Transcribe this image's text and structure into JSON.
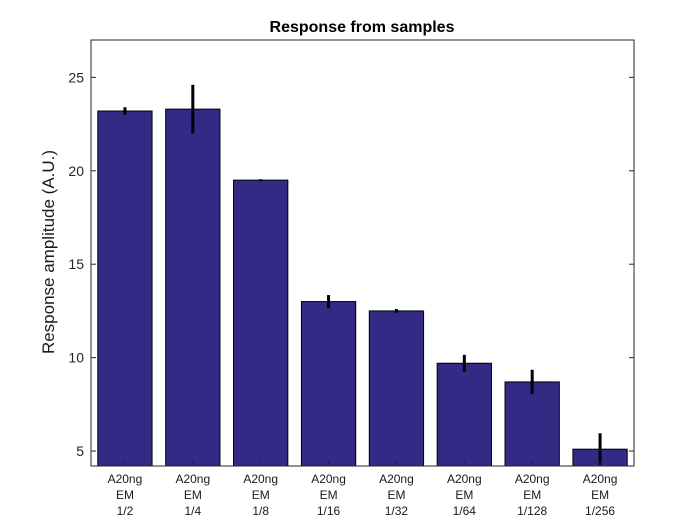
{
  "chart_data": {
    "type": "bar",
    "title": "Response from samples",
    "xlabel": "",
    "ylabel": "Response amplitude (A.U.)",
    "ylim": [
      4.2,
      27
    ],
    "yticks": [
      5,
      10,
      15,
      20,
      25
    ],
    "categories": [
      [
        "A20ng",
        "EM",
        "1/2"
      ],
      [
        "A20ng",
        "EM",
        "1/4"
      ],
      [
        "A20ng",
        "EM",
        "1/8"
      ],
      [
        "A20ng",
        "EM",
        "1/16"
      ],
      [
        "A20ng",
        "EM",
        "1/32"
      ],
      [
        "A20ng",
        "EM",
        "1/64"
      ],
      [
        "A20ng",
        "EM",
        "1/128"
      ],
      [
        "A20ng",
        "EM",
        "1/256"
      ]
    ],
    "values": [
      23.2,
      23.3,
      19.5,
      13.0,
      12.5,
      9.7,
      8.7,
      5.1
    ],
    "errors": [
      0.2,
      1.3,
      0.05,
      0.35,
      0.1,
      0.45,
      0.65,
      0.85
    ],
    "bar_color": "#332a85",
    "error_color": "#000000",
    "grid": false
  }
}
